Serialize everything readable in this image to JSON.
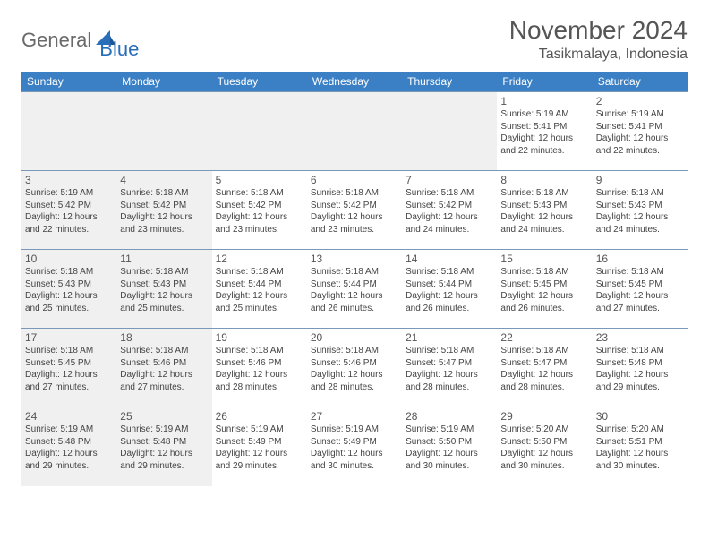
{
  "brand": {
    "part1": "General",
    "part2": "Blue"
  },
  "title": "November 2024",
  "location": "Tasikmalaya, Indonesia",
  "colors": {
    "header_bg": "#3b7fc4",
    "header_fg": "#ffffff",
    "row_border": "#7a98b8",
    "shade_bg": "#f0f0f0",
    "page_bg": "#ffffff",
    "text": "#444444",
    "logo_gray": "#6a6a6a",
    "logo_blue": "#2a6db8"
  },
  "weekdays": [
    "Sunday",
    "Monday",
    "Tuesday",
    "Wednesday",
    "Thursday",
    "Friday",
    "Saturday"
  ],
  "weeks": [
    [
      null,
      null,
      null,
      null,
      null,
      {
        "n": "1",
        "sr": "Sunrise: 5:19 AM",
        "ss": "Sunset: 5:41 PM",
        "d1": "Daylight: 12 hours",
        "d2": "and 22 minutes."
      },
      {
        "n": "2",
        "sr": "Sunrise: 5:19 AM",
        "ss": "Sunset: 5:41 PM",
        "d1": "Daylight: 12 hours",
        "d2": "and 22 minutes."
      }
    ],
    [
      {
        "n": "3",
        "sr": "Sunrise: 5:19 AM",
        "ss": "Sunset: 5:42 PM",
        "d1": "Daylight: 12 hours",
        "d2": "and 22 minutes."
      },
      {
        "n": "4",
        "sr": "Sunrise: 5:18 AM",
        "ss": "Sunset: 5:42 PM",
        "d1": "Daylight: 12 hours",
        "d2": "and 23 minutes."
      },
      {
        "n": "5",
        "sr": "Sunrise: 5:18 AM",
        "ss": "Sunset: 5:42 PM",
        "d1": "Daylight: 12 hours",
        "d2": "and 23 minutes."
      },
      {
        "n": "6",
        "sr": "Sunrise: 5:18 AM",
        "ss": "Sunset: 5:42 PM",
        "d1": "Daylight: 12 hours",
        "d2": "and 23 minutes."
      },
      {
        "n": "7",
        "sr": "Sunrise: 5:18 AM",
        "ss": "Sunset: 5:42 PM",
        "d1": "Daylight: 12 hours",
        "d2": "and 24 minutes."
      },
      {
        "n": "8",
        "sr": "Sunrise: 5:18 AM",
        "ss": "Sunset: 5:43 PM",
        "d1": "Daylight: 12 hours",
        "d2": "and 24 minutes."
      },
      {
        "n": "9",
        "sr": "Sunrise: 5:18 AM",
        "ss": "Sunset: 5:43 PM",
        "d1": "Daylight: 12 hours",
        "d2": "and 24 minutes."
      }
    ],
    [
      {
        "n": "10",
        "sr": "Sunrise: 5:18 AM",
        "ss": "Sunset: 5:43 PM",
        "d1": "Daylight: 12 hours",
        "d2": "and 25 minutes."
      },
      {
        "n": "11",
        "sr": "Sunrise: 5:18 AM",
        "ss": "Sunset: 5:43 PM",
        "d1": "Daylight: 12 hours",
        "d2": "and 25 minutes."
      },
      {
        "n": "12",
        "sr": "Sunrise: 5:18 AM",
        "ss": "Sunset: 5:44 PM",
        "d1": "Daylight: 12 hours",
        "d2": "and 25 minutes."
      },
      {
        "n": "13",
        "sr": "Sunrise: 5:18 AM",
        "ss": "Sunset: 5:44 PM",
        "d1": "Daylight: 12 hours",
        "d2": "and 26 minutes."
      },
      {
        "n": "14",
        "sr": "Sunrise: 5:18 AM",
        "ss": "Sunset: 5:44 PM",
        "d1": "Daylight: 12 hours",
        "d2": "and 26 minutes."
      },
      {
        "n": "15",
        "sr": "Sunrise: 5:18 AM",
        "ss": "Sunset: 5:45 PM",
        "d1": "Daylight: 12 hours",
        "d2": "and 26 minutes."
      },
      {
        "n": "16",
        "sr": "Sunrise: 5:18 AM",
        "ss": "Sunset: 5:45 PM",
        "d1": "Daylight: 12 hours",
        "d2": "and 27 minutes."
      }
    ],
    [
      {
        "n": "17",
        "sr": "Sunrise: 5:18 AM",
        "ss": "Sunset: 5:45 PM",
        "d1": "Daylight: 12 hours",
        "d2": "and 27 minutes."
      },
      {
        "n": "18",
        "sr": "Sunrise: 5:18 AM",
        "ss": "Sunset: 5:46 PM",
        "d1": "Daylight: 12 hours",
        "d2": "and 27 minutes."
      },
      {
        "n": "19",
        "sr": "Sunrise: 5:18 AM",
        "ss": "Sunset: 5:46 PM",
        "d1": "Daylight: 12 hours",
        "d2": "and 28 minutes."
      },
      {
        "n": "20",
        "sr": "Sunrise: 5:18 AM",
        "ss": "Sunset: 5:46 PM",
        "d1": "Daylight: 12 hours",
        "d2": "and 28 minutes."
      },
      {
        "n": "21",
        "sr": "Sunrise: 5:18 AM",
        "ss": "Sunset: 5:47 PM",
        "d1": "Daylight: 12 hours",
        "d2": "and 28 minutes."
      },
      {
        "n": "22",
        "sr": "Sunrise: 5:18 AM",
        "ss": "Sunset: 5:47 PM",
        "d1": "Daylight: 12 hours",
        "d2": "and 28 minutes."
      },
      {
        "n": "23",
        "sr": "Sunrise: 5:18 AM",
        "ss": "Sunset: 5:48 PM",
        "d1": "Daylight: 12 hours",
        "d2": "and 29 minutes."
      }
    ],
    [
      {
        "n": "24",
        "sr": "Sunrise: 5:19 AM",
        "ss": "Sunset: 5:48 PM",
        "d1": "Daylight: 12 hours",
        "d2": "and 29 minutes."
      },
      {
        "n": "25",
        "sr": "Sunrise: 5:19 AM",
        "ss": "Sunset: 5:48 PM",
        "d1": "Daylight: 12 hours",
        "d2": "and 29 minutes."
      },
      {
        "n": "26",
        "sr": "Sunrise: 5:19 AM",
        "ss": "Sunset: 5:49 PM",
        "d1": "Daylight: 12 hours",
        "d2": "and 29 minutes."
      },
      {
        "n": "27",
        "sr": "Sunrise: 5:19 AM",
        "ss": "Sunset: 5:49 PM",
        "d1": "Daylight: 12 hours",
        "d2": "and 30 minutes."
      },
      {
        "n": "28",
        "sr": "Sunrise: 5:19 AM",
        "ss": "Sunset: 5:50 PM",
        "d1": "Daylight: 12 hours",
        "d2": "and 30 minutes."
      },
      {
        "n": "29",
        "sr": "Sunrise: 5:20 AM",
        "ss": "Sunset: 5:50 PM",
        "d1": "Daylight: 12 hours",
        "d2": "and 30 minutes."
      },
      {
        "n": "30",
        "sr": "Sunrise: 5:20 AM",
        "ss": "Sunset: 5:51 PM",
        "d1": "Daylight: 12 hours",
        "d2": "and 30 minutes."
      }
    ]
  ]
}
